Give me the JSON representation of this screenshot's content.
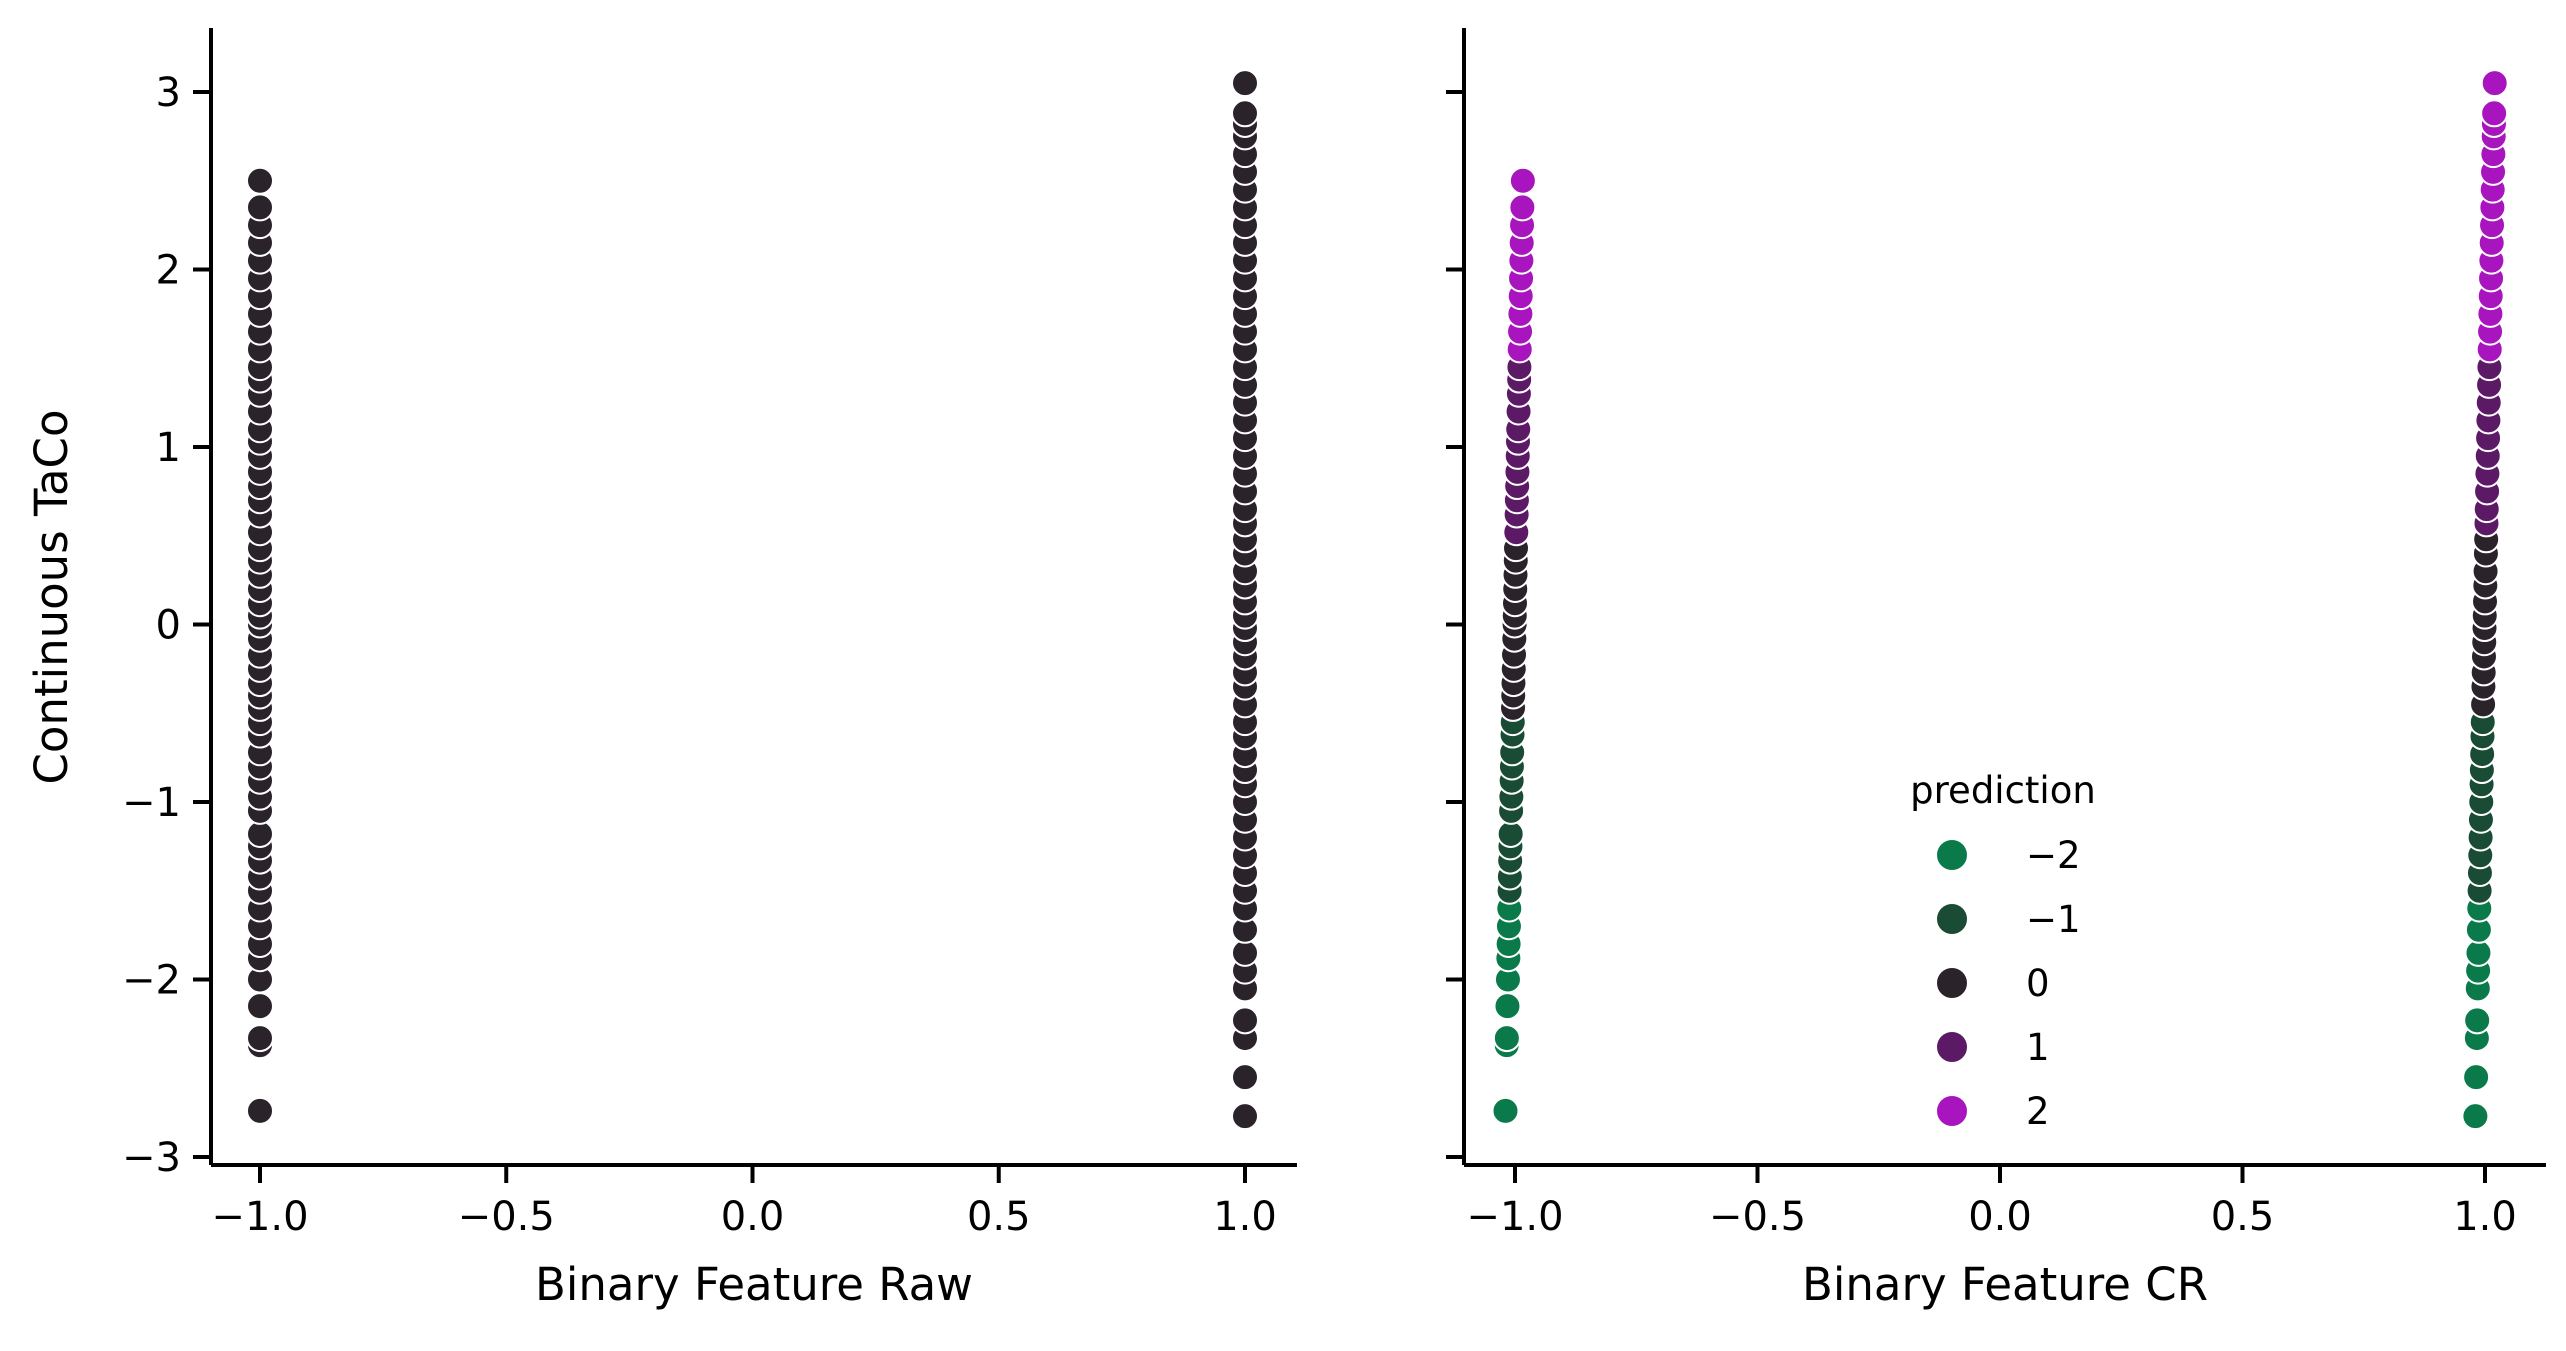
{
  "chart_data": [
    {
      "type": "scatter",
      "title": "",
      "xlabel": "Binary Feature Raw",
      "ylabel": "Continuous TaCo",
      "xlim": [
        -1.1,
        1.1
      ],
      "ylim": [
        -3.05,
        3.35
      ],
      "xticks": [
        -1.0,
        -0.5,
        0.0,
        0.5,
        1.0
      ],
      "xtick_labels": [
        "−1.0",
        "−0.5",
        "0.0",
        "0.5",
        "1.0"
      ],
      "yticks": [
        -3,
        -2,
        -1,
        0,
        1,
        2,
        3
      ],
      "ytick_labels": [
        "−3",
        "−2",
        "−1",
        "0",
        "1",
        "2",
        "3"
      ],
      "grid": false,
      "point_color": "#2a2329",
      "series": [
        {
          "x": -1.0,
          "y": [
            -2.74,
            -2.37,
            -2.33,
            -2.15,
            -2.0,
            -1.88,
            -1.8,
            -1.7,
            -1.6,
            -1.5,
            -1.42,
            -1.33,
            -1.25,
            -1.18,
            -1.05,
            -0.97,
            -0.88,
            -0.8,
            -0.72,
            -0.62,
            -0.55,
            -0.47,
            -0.4,
            -0.33,
            -0.25,
            -0.17,
            -0.08,
            0.0,
            0.05,
            0.12,
            0.2,
            0.28,
            0.36,
            0.43,
            0.52,
            0.62,
            0.7,
            0.78,
            0.86,
            0.95,
            1.03,
            1.1,
            1.2,
            1.3,
            1.38,
            1.45,
            1.55,
            1.65,
            1.75,
            1.85,
            1.95,
            2.05,
            2.15,
            2.25,
            2.35,
            2.5
          ]
        },
        {
          "x": 1.0,
          "y": [
            -2.77,
            -2.55,
            -2.33,
            -2.23,
            -2.05,
            -1.95,
            -1.85,
            -1.72,
            -1.6,
            -1.5,
            -1.4,
            -1.3,
            -1.2,
            -1.1,
            -1.0,
            -0.9,
            -0.82,
            -0.73,
            -0.63,
            -0.55,
            -0.45,
            -0.35,
            -0.27,
            -0.18,
            -0.1,
            -0.02,
            0.05,
            0.13,
            0.22,
            0.3,
            0.4,
            0.48,
            0.57,
            0.65,
            0.75,
            0.85,
            0.95,
            1.05,
            1.15,
            1.25,
            1.35,
            1.45,
            1.55,
            1.65,
            1.75,
            1.85,
            1.95,
            2.05,
            2.15,
            2.25,
            2.35,
            2.45,
            2.55,
            2.65,
            2.75,
            2.82,
            2.88,
            3.05
          ]
        }
      ]
    },
    {
      "type": "scatter",
      "title": "",
      "xlabel": "Binary Feature CR",
      "ylabel": "",
      "xlim": [
        -1.1,
        1.1
      ],
      "ylim": [
        -3.05,
        3.35
      ],
      "xticks": [
        -1.0,
        -0.5,
        0.0,
        0.5,
        1.0
      ],
      "xtick_labels": [
        "−1.0",
        "−0.5",
        "0.0",
        "0.5",
        "1.0"
      ],
      "yticks": [
        -3,
        -2,
        -1,
        0,
        1,
        2,
        3
      ],
      "ytick_labels": [],
      "grid": false,
      "hue": "prediction",
      "legend": {
        "title": "prediction",
        "placement": "lower-right",
        "entries": [
          {
            "label": "−2",
            "value": -2,
            "color": "#0b7a4b"
          },
          {
            "label": "−1",
            "value": -1,
            "color": "#1a4b35"
          },
          {
            "label": "0",
            "value": 0,
            "color": "#2a2329"
          },
          {
            "label": "1",
            "value": 1,
            "color": "#5c1a66"
          },
          {
            "label": "2",
            "value": 2,
            "color": "#a814bd"
          }
        ]
      },
      "series": [
        {
          "name": "",
          "x_lo": -1.02,
          "x_hi": -0.98,
          "y": [
            -2.74,
            -2.37,
            -2.33,
            -2.15,
            -2.0,
            -1.88,
            -1.8,
            -1.7,
            -1.6,
            -1.5,
            -1.42,
            -1.33,
            -1.25,
            -1.18,
            -1.05,
            -0.97,
            -0.88,
            -0.8,
            -0.72,
            -0.62,
            -0.55,
            -0.47,
            -0.4,
            -0.33,
            -0.25,
            -0.17,
            -0.08,
            0.0,
            0.05,
            0.12,
            0.2,
            0.28,
            0.36,
            0.43,
            0.52,
            0.62,
            0.7,
            0.78,
            0.86,
            0.95,
            1.03,
            1.1,
            1.2,
            1.3,
            1.38,
            1.45,
            1.55,
            1.65,
            1.75,
            1.85,
            1.95,
            2.05,
            2.15,
            2.25,
            2.35,
            2.5
          ]
        },
        {
          "name": "",
          "x_lo": 0.98,
          "x_hi": 1.02,
          "y": [
            -2.77,
            -2.55,
            -2.33,
            -2.23,
            -2.05,
            -1.95,
            -1.85,
            -1.72,
            -1.6,
            -1.5,
            -1.4,
            -1.3,
            -1.2,
            -1.1,
            -1.0,
            -0.9,
            -0.82,
            -0.73,
            -0.63,
            -0.55,
            -0.45,
            -0.35,
            -0.27,
            -0.18,
            -0.1,
            -0.02,
            0.05,
            0.13,
            0.22,
            0.3,
            0.4,
            0.48,
            0.57,
            0.65,
            0.75,
            0.85,
            0.95,
            1.05,
            1.15,
            1.25,
            1.35,
            1.45,
            1.55,
            1.65,
            1.75,
            1.85,
            1.95,
            2.05,
            2.15,
            2.25,
            2.35,
            2.45,
            2.55,
            2.65,
            2.75,
            2.82,
            2.88,
            3.05
          ]
        }
      ]
    }
  ]
}
